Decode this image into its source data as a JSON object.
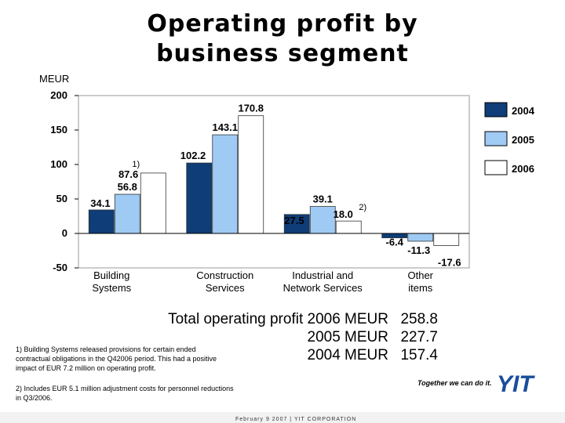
{
  "title_lines": [
    "Operating profit by",
    "business segment"
  ],
  "unit_label": "MEUR",
  "chart_data": {
    "type": "bar",
    "title": "Operating profit by business segment",
    "ylabel": "MEUR",
    "ylim": [
      -50,
      200
    ],
    "yticks": [
      -50,
      0,
      50,
      100,
      150,
      200
    ],
    "categories": [
      [
        "Building",
        "Systems"
      ],
      [
        "Construction",
        "Services"
      ],
      [
        "Industrial and",
        "Network Services"
      ],
      [
        "Other",
        "items"
      ]
    ],
    "series": [
      {
        "name": "2004",
        "color": "#0e3d77",
        "values": [
          34.1,
          102.2,
          27.5,
          -6.4
        ],
        "labels": [
          "34.1",
          "102.2",
          "27.5",
          "-6.4"
        ]
      },
      {
        "name": "2005",
        "color": "#9fcaf4",
        "values": [
          56.8,
          143.1,
          39.1,
          -11.3
        ],
        "labels": [
          "56.8",
          "143.1",
          "39.1",
          "-11.3"
        ]
      },
      {
        "name": "2006",
        "color": "#ffffff",
        "values": [
          87.6,
          170.8,
          18.0,
          -17.6
        ],
        "labels": [
          "87.6",
          "170.8",
          "18.0",
          "-17.6"
        ]
      }
    ],
    "annotations": [
      {
        "text": "1)",
        "category": 0,
        "series": 2
      },
      {
        "text": "2)",
        "category": 2,
        "series": 2
      }
    ],
    "legend": [
      "2004",
      "2005",
      "2006"
    ],
    "legend_position": "right",
    "grid": false
  },
  "totals": {
    "lines": [
      {
        "label": "Total operating profit 2006 MEUR",
        "value": "258.8"
      },
      {
        "label": "2005 MEUR",
        "value": "227.7"
      },
      {
        "label": "2004 MEUR",
        "value": "157.4"
      }
    ]
  },
  "notes": {
    "note1": "1) Building Systems released provisions for certain ended contractual obligations in the Q42006 period. This had a positive impact of EUR 7.2 million on operating profit.",
    "note2": "2) Includes EUR 5.1 million adjustment costs for personnel reductions in Q3/2006."
  },
  "branding": {
    "slogan": "Together we can do it.",
    "logo_text": "YIT",
    "logo_color": "#1a4e9a"
  },
  "footer": {
    "text": "February 9 2007  |  YIT CORPORATION"
  }
}
